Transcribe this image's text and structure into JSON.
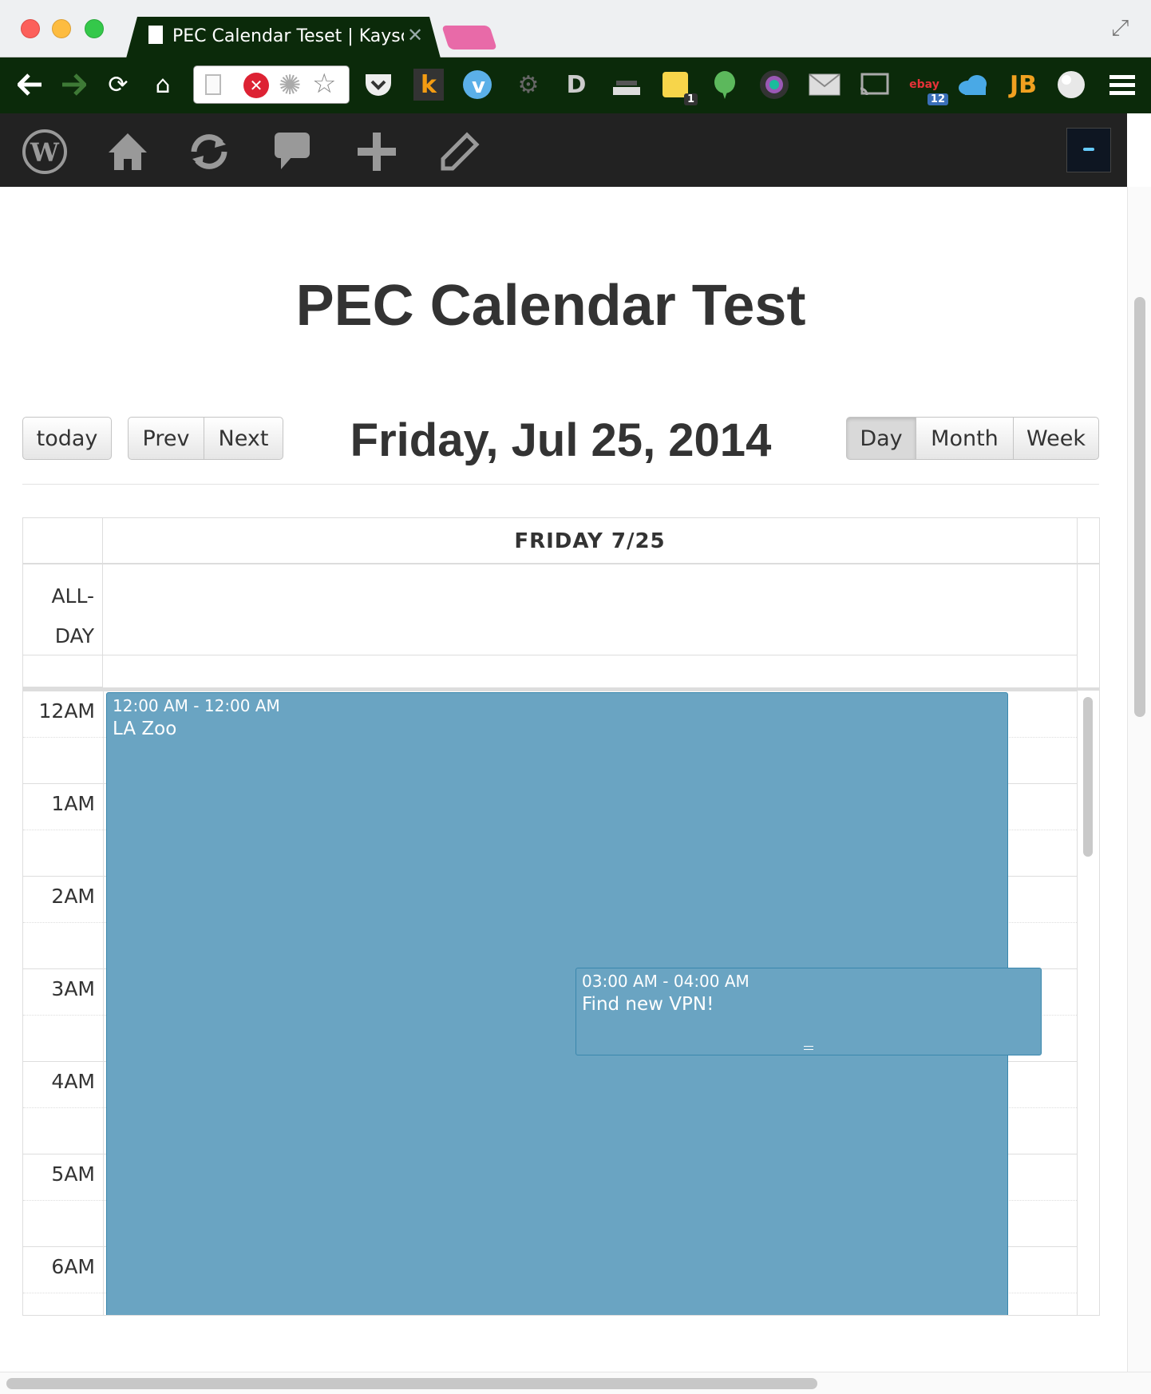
{
  "browser": {
    "tab_title": "PEC Calendar Teset | Kaysc",
    "toolbar_icons": [
      "back-icon",
      "forward-icon",
      "reload-icon",
      "home-icon",
      "pocket-icon",
      "k-extension-icon",
      "v-extension-icon",
      "gear-extension-icon",
      "d-extension-icon",
      "scanner-icon",
      "sticky-extension-icon",
      "evernote-icon",
      "camera-icon",
      "mail-icon",
      "cast-icon",
      "ebay-icon",
      "cloud-icon",
      "jb-icon",
      "globe-icon",
      "menu-icon"
    ],
    "badges": {
      "sticky": "1",
      "ebay": "12"
    },
    "jb_label": "JB",
    "k_label": "k"
  },
  "adminbar": {
    "icons": [
      "wordpress-icon",
      "home-icon",
      "updates-icon",
      "comments-icon",
      "new-content-icon",
      "edit-icon"
    ]
  },
  "page": {
    "title": "PEC Calendar Test"
  },
  "calendar": {
    "buttons": {
      "today": "today",
      "prev": "Prev",
      "next": "Next",
      "day": "Day",
      "month": "Month",
      "week": "Week"
    },
    "active_view": "Day",
    "heading": "Friday, Jul 25, 2014",
    "column_header": "FRIDAY 7/25",
    "allday_label_line1": "ALL-",
    "allday_label_line2": "DAY",
    "hours": [
      "12AM",
      "1AM",
      "2AM",
      "3AM",
      "4AM",
      "5AM",
      "6AM"
    ],
    "events": [
      {
        "time": "12:00 AM - 12:00 AM",
        "title": "LA Zoo",
        "color": "#6aa4c2"
      },
      {
        "time": "03:00 AM - 04:00 AM",
        "title": "Find new VPN!",
        "color": "#6aa4c2"
      }
    ]
  }
}
